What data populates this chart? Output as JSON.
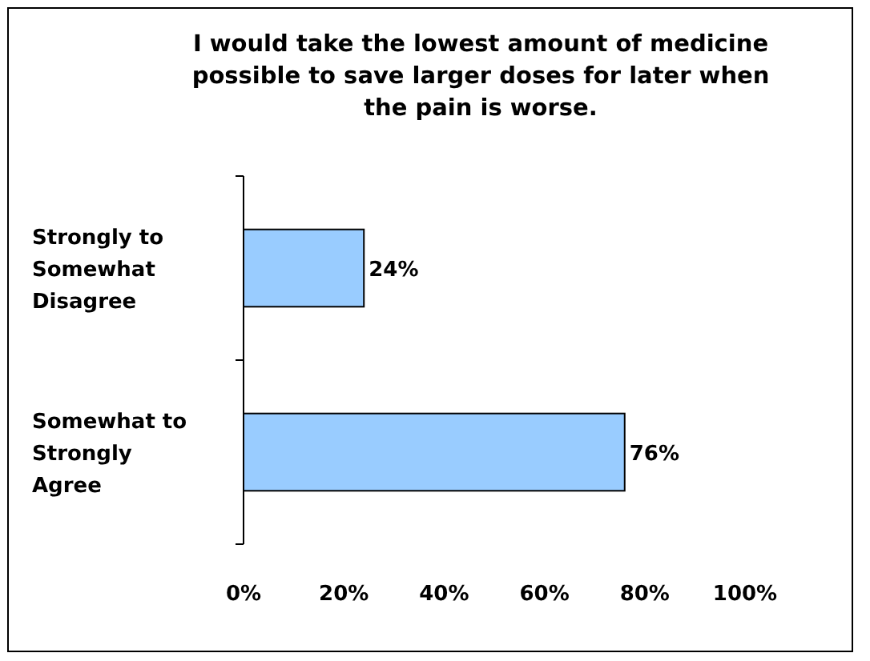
{
  "chart_data": {
    "type": "bar",
    "orientation": "horizontal",
    "title": "I would take the lowest amount of medicine possible to save larger doses for later when the pain is worse.",
    "categories": [
      "Strongly to Somewhat Disagree",
      "Somewhat to Strongly Agree"
    ],
    "values": [
      24,
      76
    ],
    "color": "#99ccff",
    "value_labels": [
      "24%",
      "76%"
    ],
    "xlim": [
      0,
      100
    ],
    "xticks": [
      {
        "value": 0,
        "label": "0%"
      },
      {
        "value": 20,
        "label": "20%"
      },
      {
        "value": 40,
        "label": "40%"
      },
      {
        "value": 60,
        "label": "60%"
      },
      {
        "value": 80,
        "label": "80%"
      },
      {
        "value": 100,
        "label": "100%"
      }
    ],
    "grid": false
  }
}
